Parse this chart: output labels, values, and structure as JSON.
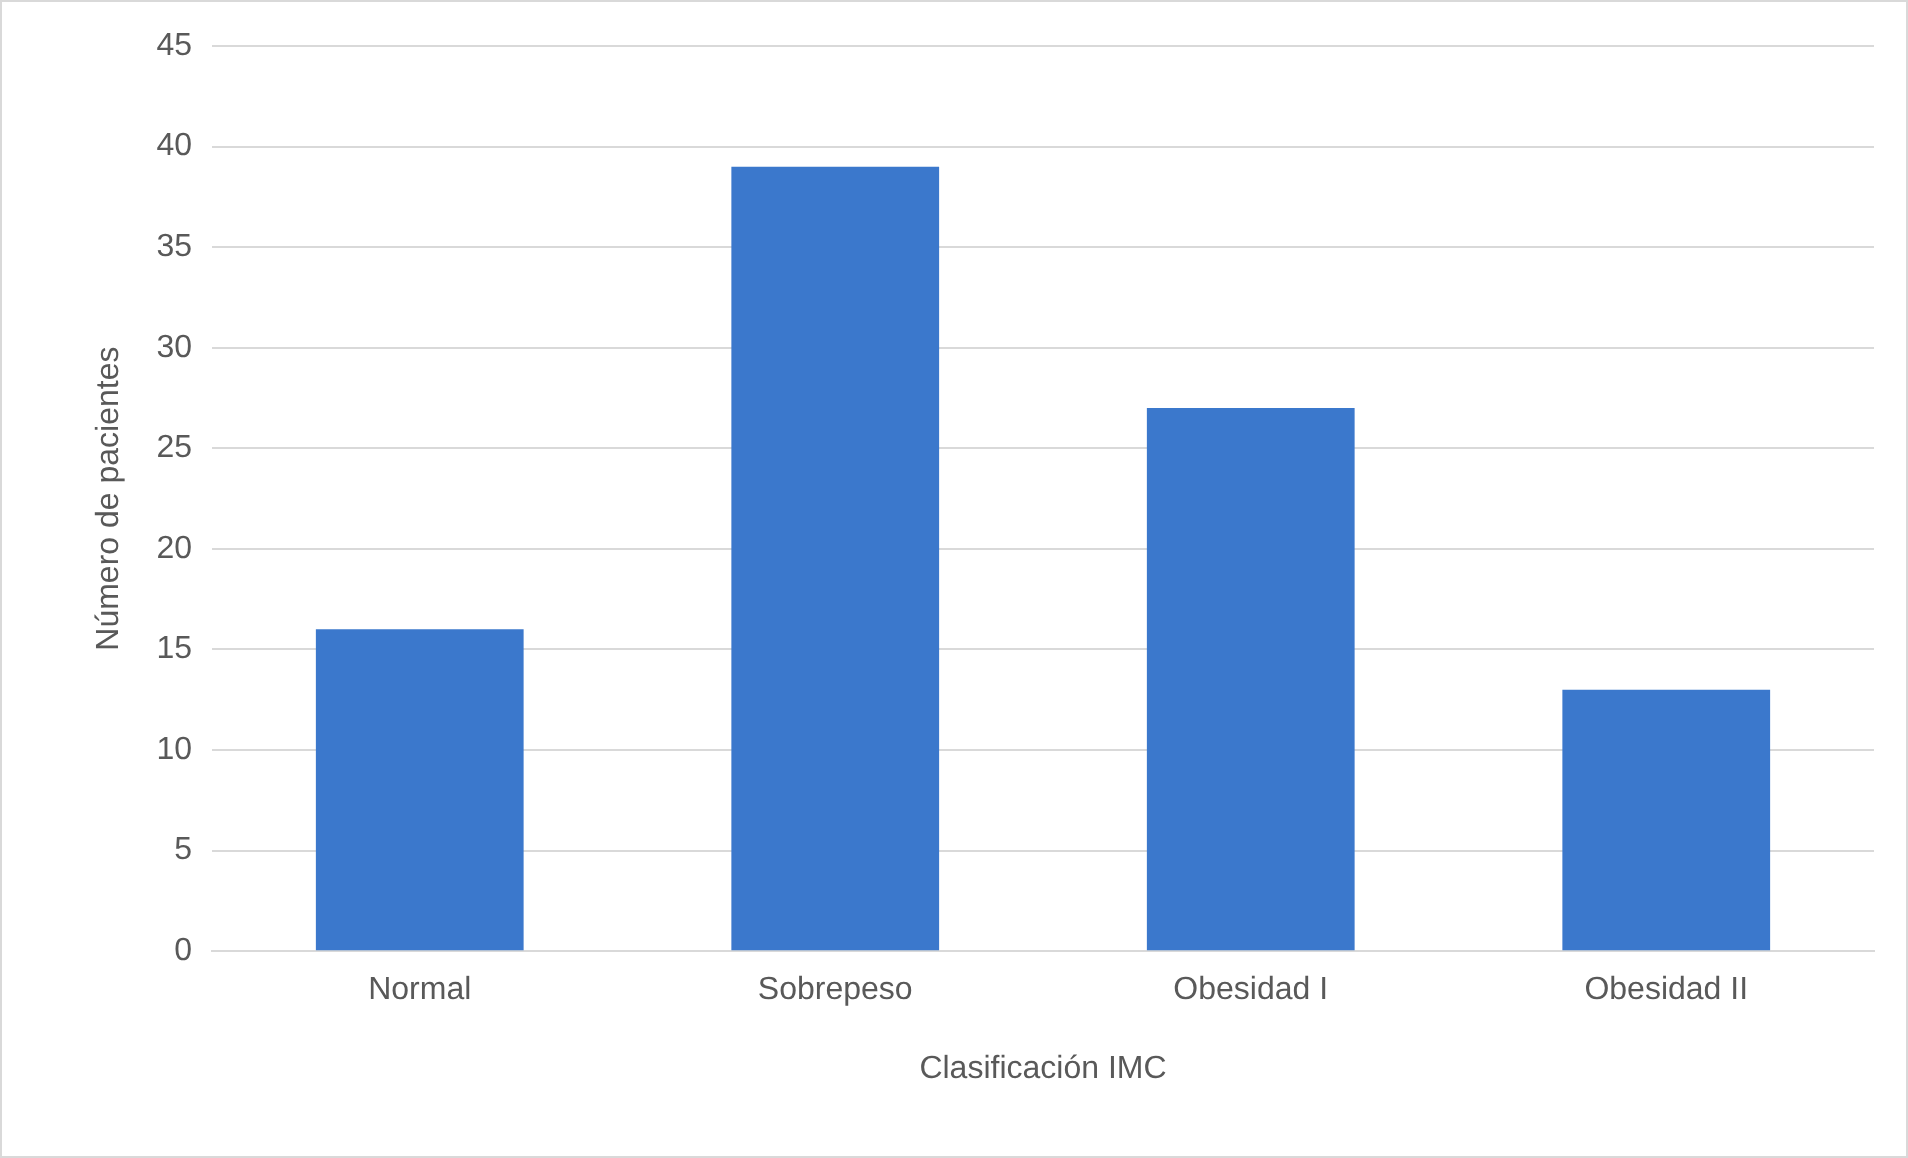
{
  "chart_data": {
    "type": "bar",
    "xlabel": "Clasificación IMC",
    "ylabel": "Número de pacientes",
    "categories": [
      "Normal",
      "Sobrepeso",
      "Obesidad I",
      "Obesidad II"
    ],
    "values": [
      16,
      39,
      27,
      13
    ],
    "color": "#3b78cc",
    "ylim": [
      0,
      45
    ],
    "yticks": [
      0,
      5,
      10,
      15,
      20,
      25,
      30,
      35,
      40,
      45
    ],
    "grid": "y"
  }
}
